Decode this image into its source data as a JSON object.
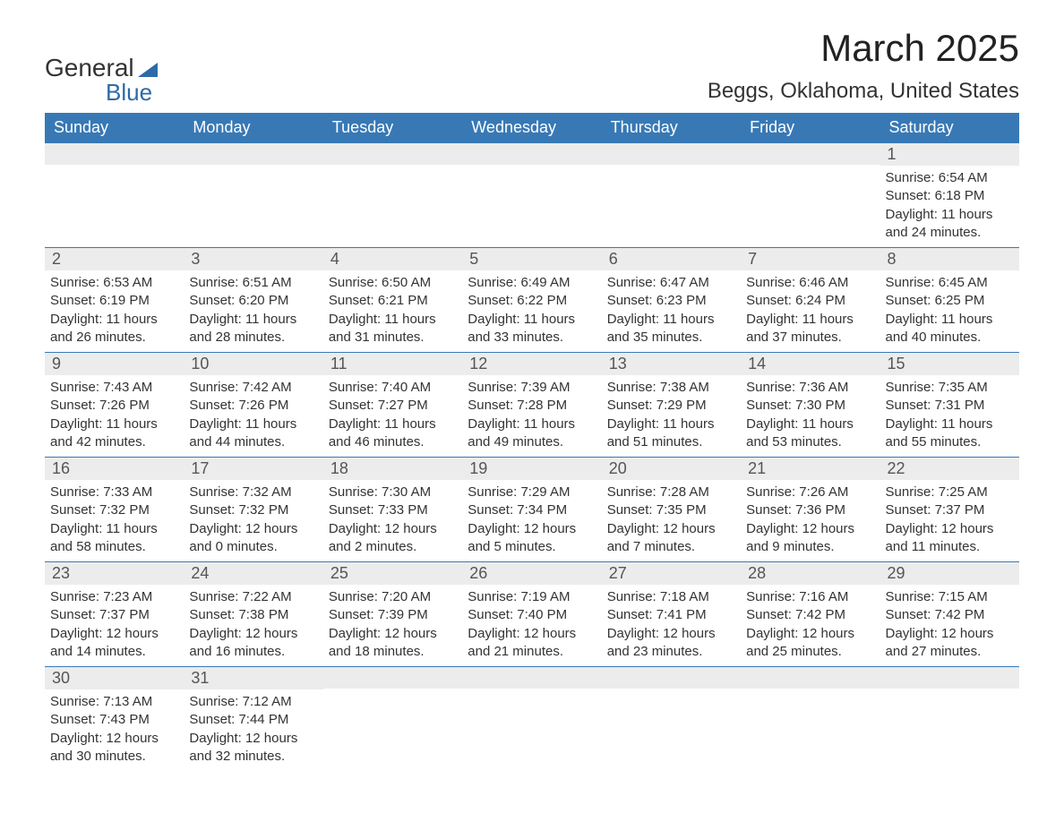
{
  "logo": {
    "word1": "General",
    "word2": "Blue"
  },
  "title": "March 2025",
  "location": "Beggs, Oklahoma, United States",
  "colors": {
    "header_bg": "#3879b5",
    "header_text": "#ffffff",
    "daynum_bg": "#ececec",
    "body_text": "#333333",
    "accent_blue": "#2c6aa8",
    "page_bg": "#ffffff"
  },
  "layout": {
    "columns": 7,
    "rows": 6,
    "cell_border_color": "#3879b5",
    "font_family": "Arial",
    "month_title_fontsize": 42,
    "location_fontsize": 24,
    "weekday_fontsize": 18,
    "daynum_fontsize": 18,
    "detail_fontsize": 15
  },
  "weekdays": [
    "Sunday",
    "Monday",
    "Tuesday",
    "Wednesday",
    "Thursday",
    "Friday",
    "Saturday"
  ],
  "weeks": [
    [
      {
        "day": "",
        "details": ""
      },
      {
        "day": "",
        "details": ""
      },
      {
        "day": "",
        "details": ""
      },
      {
        "day": "",
        "details": ""
      },
      {
        "day": "",
        "details": ""
      },
      {
        "day": "",
        "details": ""
      },
      {
        "day": "1",
        "details": "Sunrise: 6:54 AM\nSunset: 6:18 PM\nDaylight: 11 hours and 24 minutes."
      }
    ],
    [
      {
        "day": "2",
        "details": "Sunrise: 6:53 AM\nSunset: 6:19 PM\nDaylight: 11 hours and 26 minutes."
      },
      {
        "day": "3",
        "details": "Sunrise: 6:51 AM\nSunset: 6:20 PM\nDaylight: 11 hours and 28 minutes."
      },
      {
        "day": "4",
        "details": "Sunrise: 6:50 AM\nSunset: 6:21 PM\nDaylight: 11 hours and 31 minutes."
      },
      {
        "day": "5",
        "details": "Sunrise: 6:49 AM\nSunset: 6:22 PM\nDaylight: 11 hours and 33 minutes."
      },
      {
        "day": "6",
        "details": "Sunrise: 6:47 AM\nSunset: 6:23 PM\nDaylight: 11 hours and 35 minutes."
      },
      {
        "day": "7",
        "details": "Sunrise: 6:46 AM\nSunset: 6:24 PM\nDaylight: 11 hours and 37 minutes."
      },
      {
        "day": "8",
        "details": "Sunrise: 6:45 AM\nSunset: 6:25 PM\nDaylight: 11 hours and 40 minutes."
      }
    ],
    [
      {
        "day": "9",
        "details": "Sunrise: 7:43 AM\nSunset: 7:26 PM\nDaylight: 11 hours and 42 minutes."
      },
      {
        "day": "10",
        "details": "Sunrise: 7:42 AM\nSunset: 7:26 PM\nDaylight: 11 hours and 44 minutes."
      },
      {
        "day": "11",
        "details": "Sunrise: 7:40 AM\nSunset: 7:27 PM\nDaylight: 11 hours and 46 minutes."
      },
      {
        "day": "12",
        "details": "Sunrise: 7:39 AM\nSunset: 7:28 PM\nDaylight: 11 hours and 49 minutes."
      },
      {
        "day": "13",
        "details": "Sunrise: 7:38 AM\nSunset: 7:29 PM\nDaylight: 11 hours and 51 minutes."
      },
      {
        "day": "14",
        "details": "Sunrise: 7:36 AM\nSunset: 7:30 PM\nDaylight: 11 hours and 53 minutes."
      },
      {
        "day": "15",
        "details": "Sunrise: 7:35 AM\nSunset: 7:31 PM\nDaylight: 11 hours and 55 minutes."
      }
    ],
    [
      {
        "day": "16",
        "details": "Sunrise: 7:33 AM\nSunset: 7:32 PM\nDaylight: 11 hours and 58 minutes."
      },
      {
        "day": "17",
        "details": "Sunrise: 7:32 AM\nSunset: 7:32 PM\nDaylight: 12 hours and 0 minutes."
      },
      {
        "day": "18",
        "details": "Sunrise: 7:30 AM\nSunset: 7:33 PM\nDaylight: 12 hours and 2 minutes."
      },
      {
        "day": "19",
        "details": "Sunrise: 7:29 AM\nSunset: 7:34 PM\nDaylight: 12 hours and 5 minutes."
      },
      {
        "day": "20",
        "details": "Sunrise: 7:28 AM\nSunset: 7:35 PM\nDaylight: 12 hours and 7 minutes."
      },
      {
        "day": "21",
        "details": "Sunrise: 7:26 AM\nSunset: 7:36 PM\nDaylight: 12 hours and 9 minutes."
      },
      {
        "day": "22",
        "details": "Sunrise: 7:25 AM\nSunset: 7:37 PM\nDaylight: 12 hours and 11 minutes."
      }
    ],
    [
      {
        "day": "23",
        "details": "Sunrise: 7:23 AM\nSunset: 7:37 PM\nDaylight: 12 hours and 14 minutes."
      },
      {
        "day": "24",
        "details": "Sunrise: 7:22 AM\nSunset: 7:38 PM\nDaylight: 12 hours and 16 minutes."
      },
      {
        "day": "25",
        "details": "Sunrise: 7:20 AM\nSunset: 7:39 PM\nDaylight: 12 hours and 18 minutes."
      },
      {
        "day": "26",
        "details": "Sunrise: 7:19 AM\nSunset: 7:40 PM\nDaylight: 12 hours and 21 minutes."
      },
      {
        "day": "27",
        "details": "Sunrise: 7:18 AM\nSunset: 7:41 PM\nDaylight: 12 hours and 23 minutes."
      },
      {
        "day": "28",
        "details": "Sunrise: 7:16 AM\nSunset: 7:42 PM\nDaylight: 12 hours and 25 minutes."
      },
      {
        "day": "29",
        "details": "Sunrise: 7:15 AM\nSunset: 7:42 PM\nDaylight: 12 hours and 27 minutes."
      }
    ],
    [
      {
        "day": "30",
        "details": "Sunrise: 7:13 AM\nSunset: 7:43 PM\nDaylight: 12 hours and 30 minutes."
      },
      {
        "day": "31",
        "details": "Sunrise: 7:12 AM\nSunset: 7:44 PM\nDaylight: 12 hours and 32 minutes."
      },
      {
        "day": "",
        "details": ""
      },
      {
        "day": "",
        "details": ""
      },
      {
        "day": "",
        "details": ""
      },
      {
        "day": "",
        "details": ""
      },
      {
        "day": "",
        "details": ""
      }
    ]
  ]
}
